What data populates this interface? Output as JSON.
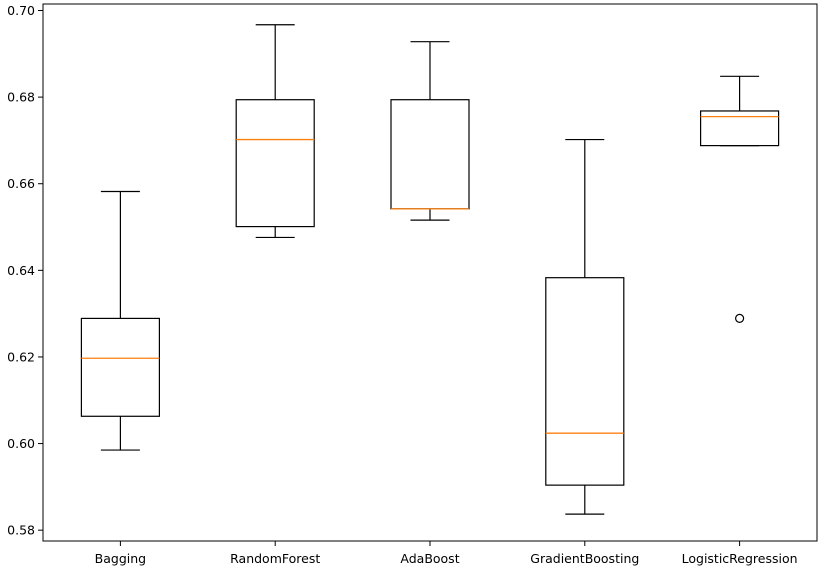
{
  "chart_data": {
    "type": "box",
    "categories": [
      "Bagging",
      "RandomForest",
      "AdaBoost",
      "GradientBoosting",
      "LogisticRegression"
    ],
    "boxes": [
      {
        "name": "Bagging",
        "whislo": 0.5985,
        "q1": 0.6063,
        "med": 0.6197,
        "q3": 0.6289,
        "whishi": 0.6582,
        "fliers": []
      },
      {
        "name": "RandomForest",
        "whislo": 0.6476,
        "q1": 0.6501,
        "med": 0.6702,
        "q3": 0.6794,
        "whishi": 0.6967,
        "fliers": []
      },
      {
        "name": "AdaBoost",
        "whislo": 0.6516,
        "q1": 0.6542,
        "med": 0.6542,
        "q3": 0.6794,
        "whishi": 0.6928,
        "fliers": []
      },
      {
        "name": "GradientBoosting",
        "whislo": 0.5837,
        "q1": 0.5904,
        "med": 0.6024,
        "q3": 0.6383,
        "whishi": 0.6702,
        "fliers": []
      },
      {
        "name": "LogisticRegression",
        "whislo": 0.6688,
        "q1": 0.6688,
        "med": 0.6755,
        "q3": 0.6768,
        "whishi": 0.6848,
        "fliers": [
          0.6289
        ]
      }
    ],
    "yticks": [
      "0.58",
      "0.60",
      "0.62",
      "0.64",
      "0.66",
      "0.68",
      "0.70"
    ],
    "ylim": [
      0.5775,
      0.7015
    ],
    "title": "",
    "xlabel": "",
    "ylabel": "",
    "grid": false,
    "colors": {
      "box": "#000000",
      "median": "#ff7f0e",
      "axes": "#000000",
      "background": "#ffffff"
    }
  }
}
